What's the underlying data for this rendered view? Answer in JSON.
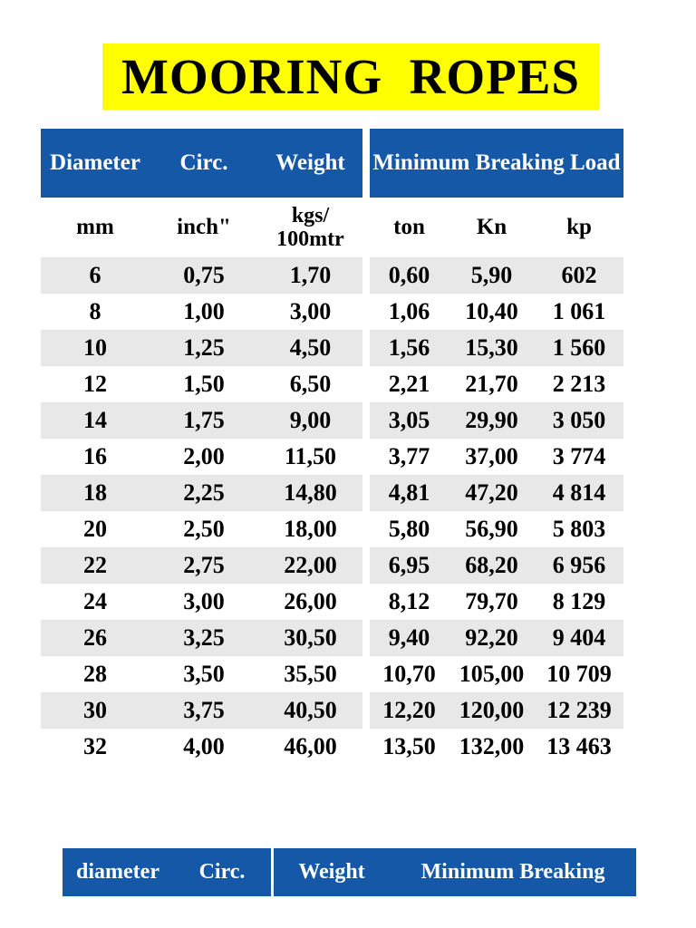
{
  "title": {
    "text": "MOORING  ROPES"
  },
  "colors": {
    "header_blue": "#1658a8",
    "title_highlight_yellow": "#ffff00",
    "row_shade_gray": "#e8e8e8",
    "header_text_white": "#ffffff",
    "body_text_black": "#000000"
  },
  "table": {
    "header": {
      "diameter": "Diameter",
      "circ": "Circ.",
      "weight": "Weight",
      "mbl": "Minimum Breaking Load"
    },
    "subheader": {
      "mm": "mm",
      "inch": "inch\"",
      "kgs": "kgs/\n100mtr",
      "ton": "ton",
      "kn": "Kn",
      "kp": "kp"
    },
    "rows": [
      [
        "6",
        "0,75",
        "1,70",
        "0,60",
        "5,90",
        "602"
      ],
      [
        "8",
        "1,00",
        "3,00",
        "1,06",
        "10,40",
        "1 061"
      ],
      [
        "10",
        "1,25",
        "4,50",
        "1,56",
        "15,30",
        "1 560"
      ],
      [
        "12",
        "1,50",
        "6,50",
        "2,21",
        "21,70",
        "2 213"
      ],
      [
        "14",
        "1,75",
        "9,00",
        "3,05",
        "29,90",
        "3 050"
      ],
      [
        "16",
        "2,00",
        "11,50",
        "3,77",
        "37,00",
        "3 774"
      ],
      [
        "18",
        "2,25",
        "14,80",
        "4,81",
        "47,20",
        "4 814"
      ],
      [
        "20",
        "2,50",
        "18,00",
        "5,80",
        "56,90",
        "5 803"
      ],
      [
        "22",
        "2,75",
        "22,00",
        "6,95",
        "68,20",
        "6 956"
      ],
      [
        "24",
        "3,00",
        "26,00",
        "8,12",
        "79,70",
        "8 129"
      ],
      [
        "26",
        "3,25",
        "30,50",
        "9,40",
        "92,20",
        "9 404"
      ],
      [
        "28",
        "3,50",
        "35,50",
        "10,70",
        "105,00",
        "10 709"
      ],
      [
        "30",
        "3,75",
        "40,50",
        "12,20",
        "120,00",
        "12 239"
      ],
      [
        "32",
        "4,00",
        "46,00",
        "13,50",
        "132,00",
        "13 463"
      ]
    ]
  },
  "bottom_table": {
    "diameter": "diameter",
    "circ": "Circ.",
    "weight": "Weight",
    "mbl": "Minimum Breaking"
  }
}
